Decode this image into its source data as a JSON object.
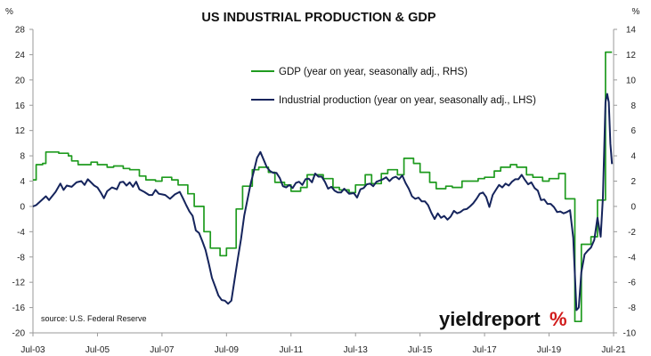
{
  "chart_data": {
    "type": "line",
    "title": "US INDUSTRIAL PRODUCTION & GDP",
    "left_axis_unit": "%",
    "right_axis_unit": "%",
    "ylim_left": [
      -20,
      28
    ],
    "ylim_right": [
      -10,
      14
    ],
    "yticks_left": [
      "28",
      "24",
      "20",
      "16",
      "12",
      "8",
      "4",
      "0",
      "-4",
      "-8",
      "-12",
      "-16",
      "-20"
    ],
    "yticks_right": [
      "14",
      "12",
      "10",
      "8",
      "6",
      "4",
      "2",
      "0",
      "-2",
      "-4",
      "-6",
      "-8",
      "-10"
    ],
    "xlim": [
      2003.5,
      2021.5
    ],
    "xticks": [
      {
        "label": "Jul-03",
        "x": 2003.5
      },
      {
        "label": "Jul-05",
        "x": 2005.5
      },
      {
        "label": "Jul-07",
        "x": 2007.5
      },
      {
        "label": "Jul-09",
        "x": 2009.5
      },
      {
        "label": "Jul-11",
        "x": 2011.5
      },
      {
        "label": "Jul-13",
        "x": 2013.5
      },
      {
        "label": "Jul-15",
        "x": 2015.5
      },
      {
        "label": "Jul-17",
        "x": 2017.5
      },
      {
        "label": "Jul-19",
        "x": 2019.5
      },
      {
        "label": "Jul-21",
        "x": 2021.5
      }
    ],
    "grid": false,
    "legend_position": "top-center",
    "series": [
      {
        "name": "GDP (year on year, seasonally adj., RHS)",
        "axis": "right",
        "color": "#1f9b1f",
        "step": true,
        "points": [
          [
            2003.5,
            2.1
          ],
          [
            2003.6,
            3.3
          ],
          [
            2003.8,
            3.4
          ],
          [
            2003.9,
            4.3
          ],
          [
            2004.3,
            4.2
          ],
          [
            2004.6,
            4.0
          ],
          [
            2004.7,
            3.6
          ],
          [
            2004.9,
            3.3
          ],
          [
            2005.3,
            3.5
          ],
          [
            2005.5,
            3.3
          ],
          [
            2005.8,
            3.1
          ],
          [
            2006.0,
            3.2
          ],
          [
            2006.3,
            3.0
          ],
          [
            2006.5,
            2.9
          ],
          [
            2006.8,
            2.4
          ],
          [
            2007.0,
            2.1
          ],
          [
            2007.3,
            2.0
          ],
          [
            2007.5,
            2.3
          ],
          [
            2007.8,
            2.1
          ],
          [
            2008.0,
            1.7
          ],
          [
            2008.3,
            1.0
          ],
          [
            2008.5,
            0.0
          ],
          [
            2008.8,
            -2.0
          ],
          [
            2009.0,
            -3.3
          ],
          [
            2009.3,
            -3.9
          ],
          [
            2009.5,
            -3.3
          ],
          [
            2009.8,
            -0.2
          ],
          [
            2010.0,
            1.6
          ],
          [
            2010.3,
            2.9
          ],
          [
            2010.5,
            3.1
          ],
          [
            2010.8,
            2.7
          ],
          [
            2011.0,
            1.9
          ],
          [
            2011.3,
            1.7
          ],
          [
            2011.5,
            1.2
          ],
          [
            2011.8,
            1.5
          ],
          [
            2012.0,
            2.5
          ],
          [
            2012.3,
            2.5
          ],
          [
            2012.5,
            2.2
          ],
          [
            2012.8,
            1.5
          ],
          [
            2013.0,
            1.3
          ],
          [
            2013.3,
            1.1
          ],
          [
            2013.5,
            1.7
          ],
          [
            2013.8,
            2.5
          ],
          [
            2014.0,
            1.8
          ],
          [
            2014.3,
            2.6
          ],
          [
            2014.5,
            2.9
          ],
          [
            2014.8,
            2.5
          ],
          [
            2015.0,
            3.8
          ],
          [
            2015.3,
            3.4
          ],
          [
            2015.5,
            2.7
          ],
          [
            2015.8,
            1.9
          ],
          [
            2016.0,
            1.4
          ],
          [
            2016.3,
            1.6
          ],
          [
            2016.5,
            1.5
          ],
          [
            2016.8,
            2.0
          ],
          [
            2017.0,
            2.0
          ],
          [
            2017.3,
            2.2
          ],
          [
            2017.5,
            2.3
          ],
          [
            2017.8,
            2.8
          ],
          [
            2018.0,
            3.1
          ],
          [
            2018.3,
            3.3
          ],
          [
            2018.5,
            3.1
          ],
          [
            2018.8,
            2.5
          ],
          [
            2019.0,
            2.3
          ],
          [
            2019.3,
            2.0
          ],
          [
            2019.5,
            2.2
          ],
          [
            2019.8,
            2.6
          ],
          [
            2020.0,
            0.6
          ],
          [
            2020.3,
            -9.1
          ],
          [
            2020.5,
            -3.0
          ],
          [
            2020.8,
            -2.4
          ],
          [
            2021.0,
            0.5
          ],
          [
            2021.25,
            12.2
          ],
          [
            2021.45,
            12.2
          ]
        ]
      },
      {
        "name": "Industrial production (year on year, seasonally adj., LHS)",
        "axis": "left",
        "color": "#15245c",
        "step": false,
        "points": [
          [
            2003.5,
            0
          ],
          [
            2003.6,
            0.2
          ],
          [
            2003.75,
            0.9
          ],
          [
            2003.9,
            1.6
          ],
          [
            2004.0,
            1.0
          ],
          [
            2004.2,
            2.3
          ],
          [
            2004.35,
            3.6
          ],
          [
            2004.45,
            2.6
          ],
          [
            2004.55,
            3.3
          ],
          [
            2004.7,
            3.1
          ],
          [
            2004.85,
            3.8
          ],
          [
            2005.0,
            4.0
          ],
          [
            2005.1,
            3.4
          ],
          [
            2005.2,
            4.3
          ],
          [
            2005.3,
            3.8
          ],
          [
            2005.4,
            3.3
          ],
          [
            2005.5,
            3.0
          ],
          [
            2005.6,
            2.2
          ],
          [
            2005.7,
            1.3
          ],
          [
            2005.8,
            2.4
          ],
          [
            2005.95,
            3.0
          ],
          [
            2006.1,
            2.7
          ],
          [
            2006.2,
            3.8
          ],
          [
            2006.3,
            3.9
          ],
          [
            2006.4,
            3.3
          ],
          [
            2006.5,
            3.8
          ],
          [
            2006.6,
            3.1
          ],
          [
            2006.7,
            3.9
          ],
          [
            2006.8,
            2.7
          ],
          [
            2006.95,
            2.3
          ],
          [
            2007.1,
            1.8
          ],
          [
            2007.2,
            1.8
          ],
          [
            2007.3,
            2.6
          ],
          [
            2007.4,
            2.0
          ],
          [
            2007.5,
            1.9
          ],
          [
            2007.6,
            1.8
          ],
          [
            2007.75,
            1.2
          ],
          [
            2007.9,
            1.9
          ],
          [
            2008.05,
            2.3
          ],
          [
            2008.15,
            1.3
          ],
          [
            2008.25,
            0.2
          ],
          [
            2008.35,
            -0.8
          ],
          [
            2008.45,
            -1.5
          ],
          [
            2008.55,
            -3.8
          ],
          [
            2008.65,
            -4.2
          ],
          [
            2008.75,
            -5.5
          ],
          [
            2008.85,
            -6.9
          ],
          [
            2008.95,
            -9.0
          ],
          [
            2009.05,
            -11.3
          ],
          [
            2009.15,
            -12.7
          ],
          [
            2009.25,
            -14.1
          ],
          [
            2009.35,
            -14.8
          ],
          [
            2009.45,
            -14.9
          ],
          [
            2009.55,
            -15.4
          ],
          [
            2009.65,
            -14.9
          ],
          [
            2009.75,
            -11.6
          ],
          [
            2009.85,
            -8.3
          ],
          [
            2009.95,
            -5.2
          ],
          [
            2010.05,
            -1.4
          ],
          [
            2010.15,
            1.1
          ],
          [
            2010.25,
            3.6
          ],
          [
            2010.35,
            5.6
          ],
          [
            2010.45,
            7.7
          ],
          [
            2010.55,
            8.6
          ],
          [
            2010.65,
            7.4
          ],
          [
            2010.75,
            6.2
          ],
          [
            2010.85,
            5.6
          ],
          [
            2010.95,
            5.3
          ],
          [
            2011.05,
            5.3
          ],
          [
            2011.15,
            4.5
          ],
          [
            2011.25,
            3.2
          ],
          [
            2011.35,
            3.0
          ],
          [
            2011.45,
            3.4
          ],
          [
            2011.55,
            2.9
          ],
          [
            2011.65,
            3.7
          ],
          [
            2011.75,
            3.9
          ],
          [
            2011.85,
            3.4
          ],
          [
            2011.95,
            4.3
          ],
          [
            2012.05,
            4.4
          ],
          [
            2012.15,
            3.8
          ],
          [
            2012.25,
            5.2
          ],
          [
            2012.35,
            4.7
          ],
          [
            2012.45,
            4.7
          ],
          [
            2012.55,
            3.9
          ],
          [
            2012.65,
            2.8
          ],
          [
            2012.75,
            3.1
          ],
          [
            2012.85,
            2.5
          ],
          [
            2012.95,
            2.2
          ],
          [
            2013.05,
            2.2
          ],
          [
            2013.15,
            2.8
          ],
          [
            2013.3,
            2.0
          ],
          [
            2013.45,
            2.1
          ],
          [
            2013.55,
            1.4
          ],
          [
            2013.65,
            2.7
          ],
          [
            2013.75,
            2.9
          ],
          [
            2013.85,
            3.5
          ],
          [
            2013.95,
            3.6
          ],
          [
            2014.05,
            3.2
          ],
          [
            2014.15,
            3.9
          ],
          [
            2014.25,
            4.1
          ],
          [
            2014.35,
            4.3
          ],
          [
            2014.45,
            4.6
          ],
          [
            2014.55,
            4.0
          ],
          [
            2014.65,
            4.5
          ],
          [
            2014.75,
            4.7
          ],
          [
            2014.85,
            4.3
          ],
          [
            2014.95,
            4.9
          ],
          [
            2015.05,
            3.7
          ],
          [
            2015.15,
            2.8
          ],
          [
            2015.25,
            1.6
          ],
          [
            2015.35,
            1.2
          ],
          [
            2015.45,
            1.4
          ],
          [
            2015.55,
            0.8
          ],
          [
            2015.65,
            0.8
          ],
          [
            2015.75,
            0.2
          ],
          [
            2015.85,
            -1.0
          ],
          [
            2015.95,
            -2.0
          ],
          [
            2016.05,
            -1.1
          ],
          [
            2016.15,
            -1.8
          ],
          [
            2016.25,
            -1.5
          ],
          [
            2016.35,
            -2.1
          ],
          [
            2016.45,
            -1.6
          ],
          [
            2016.55,
            -0.7
          ],
          [
            2016.65,
            -1.1
          ],
          [
            2016.75,
            -0.9
          ],
          [
            2016.85,
            -0.5
          ],
          [
            2016.95,
            -0.4
          ],
          [
            2017.05,
            0.0
          ],
          [
            2017.15,
            0.5
          ],
          [
            2017.25,
            1.2
          ],
          [
            2017.35,
            2.0
          ],
          [
            2017.45,
            2.2
          ],
          [
            2017.55,
            1.5
          ],
          [
            2017.65,
            -0.1
          ],
          [
            2017.75,
            1.8
          ],
          [
            2017.85,
            2.6
          ],
          [
            2017.95,
            3.4
          ],
          [
            2018.05,
            3.0
          ],
          [
            2018.15,
            3.6
          ],
          [
            2018.25,
            3.3
          ],
          [
            2018.35,
            3.9
          ],
          [
            2018.45,
            4.3
          ],
          [
            2018.55,
            4.3
          ],
          [
            2018.65,
            5.0
          ],
          [
            2018.75,
            4.2
          ],
          [
            2018.85,
            3.5
          ],
          [
            2018.95,
            3.8
          ],
          [
            2019.05,
            2.9
          ],
          [
            2019.15,
            2.5
          ],
          [
            2019.25,
            1.0
          ],
          [
            2019.35,
            1.1
          ],
          [
            2019.45,
            0.4
          ],
          [
            2019.55,
            0.4
          ],
          [
            2019.65,
            -0.1
          ],
          [
            2019.75,
            -0.9
          ],
          [
            2019.85,
            -0.8
          ],
          [
            2019.95,
            -1.1
          ],
          [
            2020.05,
            -0.9
          ],
          [
            2020.15,
            -0.6
          ],
          [
            2020.25,
            -5.0
          ],
          [
            2020.35,
            -16.4
          ],
          [
            2020.42,
            -16.0
          ],
          [
            2020.5,
            -10.4
          ],
          [
            2020.6,
            -7.6
          ],
          [
            2020.7,
            -7.0
          ],
          [
            2020.8,
            -6.5
          ],
          [
            2020.9,
            -5.3
          ],
          [
            2021.0,
            -1.8
          ],
          [
            2021.1,
            -4.8
          ],
          [
            2021.17,
            1.4
          ],
          [
            2021.25,
            16.5
          ],
          [
            2021.3,
            17.8
          ],
          [
            2021.35,
            16.5
          ],
          [
            2021.4,
            9.9
          ],
          [
            2021.45,
            6.7
          ]
        ]
      }
    ],
    "source": "source: U.S. Federal Reserve"
  },
  "branding": {
    "logo_text": "yieldreport",
    "logo_symbol": "%"
  }
}
